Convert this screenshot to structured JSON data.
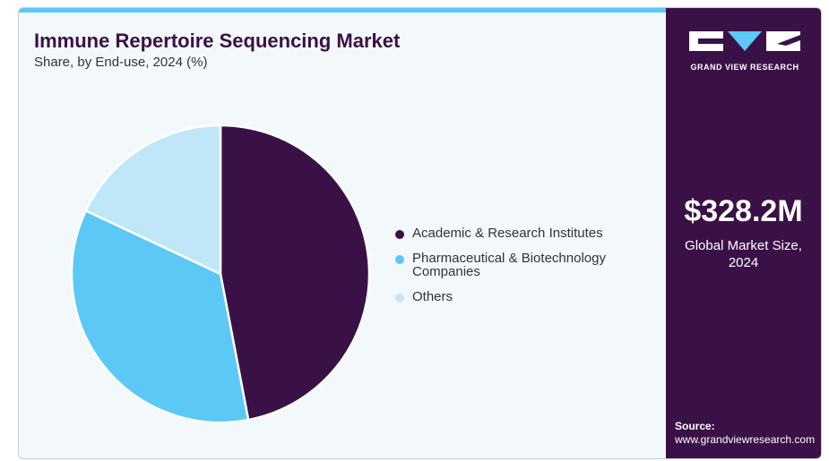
{
  "title": "Immune Repertoire Sequencing Market",
  "subtitle": "Share, by End-use, 2024 (%)",
  "brand": {
    "name": "GRAND VIEW RESEARCH"
  },
  "market": {
    "value": "$328.2M",
    "label": "Global Market Size, 2024"
  },
  "source": {
    "title": "Source:",
    "url": "www.grandviewresearch.com"
  },
  "colors": {
    "accent": "#5bc8f5",
    "brand": "#3a1146",
    "background": "#f3f8fb"
  },
  "chart_data": {
    "type": "pie",
    "categories": [
      "Academic & Research Institutes",
      "Pharmaceutical & Biotechnology Companies",
      "Others"
    ],
    "values": [
      47,
      35,
      18
    ],
    "colors": [
      "#3a1146",
      "#5bc8f5",
      "#bfe7f8"
    ],
    "title": "Immune Repertoire Sequencing Market",
    "subtitle": "Share, by End-use, 2024 (%)",
    "legend": "right"
  }
}
